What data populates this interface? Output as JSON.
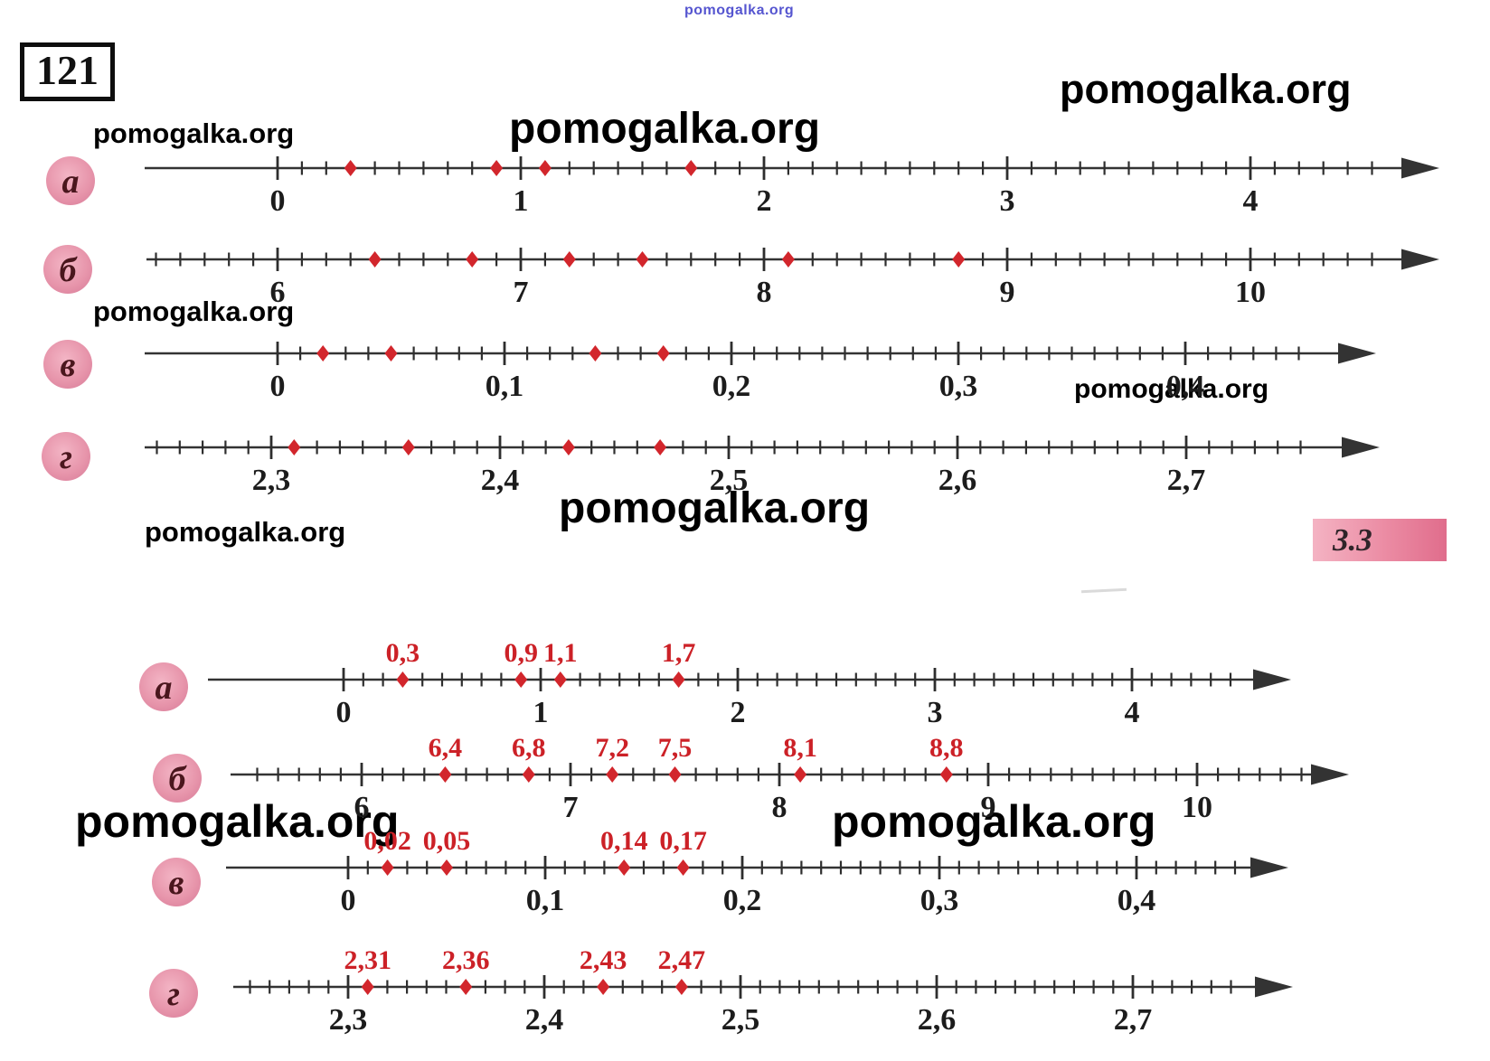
{
  "page": {
    "problem_number": "121",
    "section_badge": "3.3"
  },
  "watermark": {
    "text": "pomogalka.org"
  },
  "colors": {
    "axis": "#333333",
    "tick": "#2e2e2e",
    "number_label": "#1c1c1c",
    "point": "#d2262c",
    "red_label": "#cc2127",
    "circle_fill": "#ec9fb4",
    "circle_letter": "#4a161d",
    "badge_pink": "#eb8ba3"
  },
  "number_lines": {
    "top": [
      {
        "id": "a",
        "letter": "а",
        "major_values": [
          0,
          1,
          2,
          3,
          4
        ],
        "major_labels": [
          "0",
          "1",
          "2",
          "3",
          "4"
        ],
        "major_step": 1,
        "minor_step": 0.1,
        "tick_min": 0,
        "tick_max": 4.5,
        "points": [
          0.3,
          0.9,
          1.1,
          1.7
        ],
        "point_labels": []
      },
      {
        "id": "b",
        "letter": "б",
        "major_values": [
          6,
          7,
          8,
          9,
          10
        ],
        "major_labels": [
          "6",
          "7",
          "8",
          "9",
          "10"
        ],
        "major_step": 1,
        "minor_step": 0.1,
        "tick_min": 5.5,
        "tick_max": 10.5,
        "points": [
          6.4,
          6.8,
          7.2,
          7.5,
          8.1,
          8.8
        ],
        "point_labels": []
      },
      {
        "id": "v",
        "letter": "в",
        "major_values": [
          0,
          0.1,
          0.2,
          0.3,
          0.4
        ],
        "major_labels": [
          "0",
          "0,1",
          "0,2",
          "0,3",
          "0,4"
        ],
        "major_step": 0.1,
        "minor_step": 0.01,
        "tick_min": 0,
        "tick_max": 0.45,
        "points": [
          0.02,
          0.05,
          0.14,
          0.17
        ],
        "point_labels": []
      },
      {
        "id": "g",
        "letter": "г",
        "major_values": [
          2.3,
          2.4,
          2.5,
          2.6,
          2.7
        ],
        "major_labels": [
          "2,3",
          "2,4",
          "2,5",
          "2,6",
          "2,7"
        ],
        "major_step": 0.1,
        "minor_step": 0.01,
        "tick_min": 2.25,
        "tick_max": 2.75,
        "points": [
          2.31,
          2.36,
          2.43,
          2.47
        ],
        "point_labels": []
      }
    ],
    "bottom": [
      {
        "id": "a",
        "letter": "а",
        "major_values": [
          0,
          1,
          2,
          3,
          4
        ],
        "major_labels": [
          "0",
          "1",
          "2",
          "3",
          "4"
        ],
        "major_step": 1,
        "minor_step": 0.1,
        "tick_min": 0,
        "tick_max": 4.5,
        "points": [
          0.3,
          0.9,
          1.1,
          1.7
        ],
        "point_labels": [
          "0,3",
          "0,9",
          "1,1",
          "1,7"
        ]
      },
      {
        "id": "b",
        "letter": "б",
        "major_values": [
          6,
          7,
          8,
          9,
          10
        ],
        "major_labels": [
          "6",
          "7",
          "8",
          "9",
          "10"
        ],
        "major_step": 1,
        "minor_step": 0.1,
        "tick_min": 5.5,
        "tick_max": 10.5,
        "points": [
          6.4,
          6.8,
          7.2,
          7.5,
          8.1,
          8.8
        ],
        "point_labels": [
          "6,4",
          "6,8",
          "7,2",
          "7,5",
          "8,1",
          "8,8"
        ]
      },
      {
        "id": "v",
        "letter": "в",
        "major_values": [
          0,
          0.1,
          0.2,
          0.3,
          0.4
        ],
        "major_labels": [
          "0",
          "0,1",
          "0,2",
          "0,3",
          "0,4"
        ],
        "major_step": 0.1,
        "minor_step": 0.01,
        "tick_min": 0,
        "tick_max": 0.45,
        "points": [
          0.02,
          0.05,
          0.14,
          0.17
        ],
        "point_labels": [
          "0,02",
          "0,05",
          "0,14",
          "0,17"
        ]
      },
      {
        "id": "g",
        "letter": "г",
        "major_values": [
          2.3,
          2.4,
          2.5,
          2.6,
          2.7
        ],
        "major_labels": [
          "2,3",
          "2,4",
          "2,5",
          "2,6",
          "2,7"
        ],
        "major_step": 0.1,
        "minor_step": 0.01,
        "tick_min": 2.25,
        "tick_max": 2.75,
        "points": [
          2.31,
          2.36,
          2.43,
          2.47
        ],
        "point_labels": [
          "2,31",
          "2,36",
          "2,43",
          "2,47"
        ]
      }
    ]
  }
}
